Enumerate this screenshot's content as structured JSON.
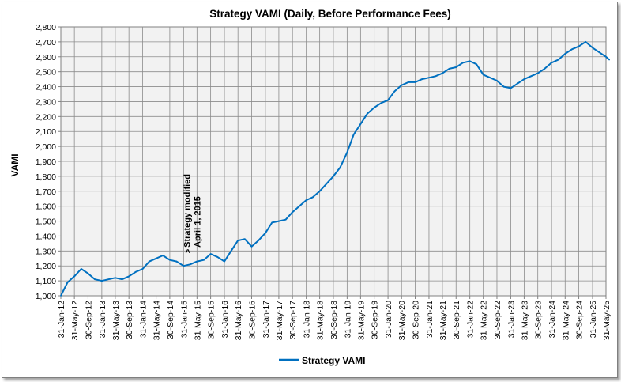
{
  "chart_data": {
    "type": "line",
    "title": "Strategy VAMI  (Daily, Before Performance Fees)",
    "xlabel": "",
    "ylabel": "VAMI",
    "ylim": [
      1000,
      2800
    ],
    "yticks": [
      "1,000",
      "1,100",
      "1,200",
      "1,300",
      "1,400",
      "1,500",
      "1,600",
      "1,700",
      "1,800",
      "1,900",
      "2,000",
      "2,100",
      "2,200",
      "2,300",
      "2,400",
      "2,500",
      "2,600",
      "2,700",
      "2,800"
    ],
    "xticks": [
      "31-Jan-12",
      "31-May-12",
      "30-Sep-12",
      "31-Jan-13",
      "31-May-13",
      "30-Sep-13",
      "31-Jan-14",
      "31-May-14",
      "30-Sep-14",
      "31-Jan-15",
      "31-May-15",
      "30-Sep-15",
      "31-Jan-16",
      "31-May-16",
      "30-Sep-16",
      "31-Jan-17",
      "31-May-17",
      "30-Sep-17",
      "31-Jan-18",
      "31-May-18",
      "30-Sep-18",
      "31-Jan-19",
      "31-May-19",
      "30-Sep-19",
      "31-Jan-20",
      "31-May-20",
      "30-Sep-20",
      "31-Jan-21",
      "31-May-21",
      "30-Sep-21",
      "31-Jan-22",
      "31-May-22",
      "30-Sep-22",
      "31-Jan-23",
      "31-May-23",
      "30-Sep-23",
      "31-Jan-24",
      "31-May-24",
      "30-Sep-24",
      "31-Jan-25",
      "31-May-25"
    ],
    "grid": true,
    "legend": "bottom",
    "series": [
      {
        "name": "Strategy VAMI",
        "color": "#0070c0",
        "x": [
          "31-Jan-12",
          "31-Mar-12",
          "31-May-12",
          "31-Jul-12",
          "30-Sep-12",
          "30-Nov-12",
          "31-Jan-13",
          "31-Mar-13",
          "31-May-13",
          "31-Jul-13",
          "30-Sep-13",
          "30-Nov-13",
          "31-Jan-14",
          "31-Mar-14",
          "31-May-14",
          "31-Jul-14",
          "30-Sep-14",
          "30-Nov-14",
          "31-Jan-15",
          "31-Mar-15",
          "31-May-15",
          "31-Jul-15",
          "30-Sep-15",
          "30-Nov-15",
          "31-Jan-16",
          "31-Mar-16",
          "31-May-16",
          "31-Jul-16",
          "30-Sep-16",
          "30-Nov-16",
          "31-Jan-17",
          "31-Mar-17",
          "31-May-17",
          "31-Jul-17",
          "30-Sep-17",
          "30-Nov-17",
          "31-Jan-18",
          "31-Mar-18",
          "31-May-18",
          "31-Jul-18",
          "30-Sep-18",
          "30-Nov-18",
          "31-Jan-19",
          "31-Mar-19",
          "31-May-19",
          "31-Jul-19",
          "30-Sep-19",
          "30-Nov-19",
          "31-Jan-20",
          "31-Mar-20",
          "31-May-20",
          "31-Jul-20",
          "30-Sep-20",
          "30-Nov-20",
          "31-Jan-21",
          "31-Mar-21",
          "31-May-21",
          "31-Jul-21",
          "30-Sep-21",
          "30-Nov-21",
          "31-Jan-22",
          "31-Mar-22",
          "31-May-22",
          "31-Jul-22",
          "30-Sep-22",
          "30-Nov-22",
          "31-Jan-23",
          "31-Mar-23",
          "31-May-23",
          "31-Jul-23",
          "30-Sep-23",
          "30-Nov-23",
          "31-Jan-24",
          "31-Mar-24",
          "31-May-24",
          "31-Jul-24",
          "30-Sep-24",
          "30-Nov-24",
          "31-Jan-25",
          "31-Mar-25",
          "31-May-25",
          "30-Jun-25"
        ],
        "values": [
          1000,
          1090,
          1130,
          1180,
          1150,
          1110,
          1100,
          1110,
          1120,
          1110,
          1130,
          1160,
          1180,
          1230,
          1250,
          1270,
          1240,
          1230,
          1200,
          1210,
          1230,
          1240,
          1280,
          1260,
          1230,
          1300,
          1370,
          1380,
          1330,
          1370,
          1420,
          1490,
          1500,
          1510,
          1560,
          1600,
          1640,
          1660,
          1700,
          1750,
          1800,
          1860,
          1960,
          2080,
          2150,
          2220,
          2260,
          2290,
          2310,
          2370,
          2410,
          2430,
          2430,
          2450,
          2460,
          2470,
          2490,
          2520,
          2530,
          2560,
          2570,
          2550,
          2480,
          2460,
          2440,
          2400,
          2390,
          2420,
          2450,
          2470,
          2490,
          2520,
          2560,
          2580,
          2620,
          2650,
          2670,
          2700,
          2660,
          2630,
          2600,
          2580
        ]
      }
    ],
    "annotation": {
      "text": [
        "Strategy modified",
        "April 1, 2015"
      ],
      "marker": "^",
      "x": "31-Mar-15"
    }
  }
}
